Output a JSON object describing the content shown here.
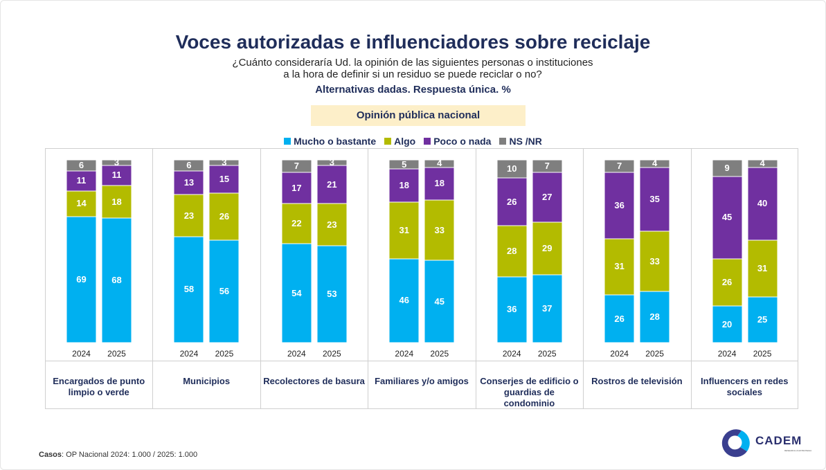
{
  "chart_data": {
    "type": "stacked_bar",
    "title": "Voces autorizadas e influenciadores sobre reciclaje",
    "subtitle": "¿Cuánto consideraría Ud. la opinión de las siguientes personas o instituciones a la hora de definir si un residuo se puede reciclar o no?",
    "note": "Alternativas dadas. Respuesta única. %",
    "badge": "Opinión pública nacional",
    "groups": [
      "Encargados de punto limpio o verde",
      "Municipios",
      "Recolectores de basura",
      "Familiares y/o amigos",
      "Conserjes de edificio o guardias de condominio",
      "Rostros de televisión",
      "Influencers en redes sociales"
    ],
    "categories": [
      "2024",
      "2025",
      "2024",
      "2025",
      "2024",
      "2025",
      "2024",
      "2025",
      "2024",
      "2025",
      "2024",
      "2025",
      "2024",
      "2025"
    ],
    "ylim": [
      0,
      100
    ],
    "series": [
      {
        "name": "Mucho o bastante",
        "color": "#00b0f0",
        "values": [
          69,
          68,
          58,
          56,
          54,
          53,
          46,
          45,
          36,
          37,
          26,
          28,
          20,
          25
        ]
      },
      {
        "name": "Algo",
        "color": "#b3bb00",
        "values": [
          14,
          18,
          23,
          26,
          22,
          23,
          31,
          33,
          28,
          29,
          31,
          33,
          26,
          31
        ]
      },
      {
        "name": "Poco o nada",
        "color": "#7030a0",
        "values": [
          11,
          11,
          13,
          15,
          17,
          21,
          18,
          18,
          26,
          27,
          36,
          35,
          45,
          40
        ]
      },
      {
        "name": "NS /NR",
        "color": "#7f7f7f",
        "values": [
          6,
          3,
          6,
          3,
          7,
          3,
          5,
          4,
          10,
          7,
          7,
          4,
          9,
          4
        ]
      }
    ],
    "legend": "top"
  },
  "footer": {
    "label": "Casos",
    "text": ": OP Nacional 2024: 1.000 / 2025: 1.000"
  },
  "logo": {
    "text": "CADEM",
    "tagline": "RESEARCH & ESTRATEGIA"
  }
}
